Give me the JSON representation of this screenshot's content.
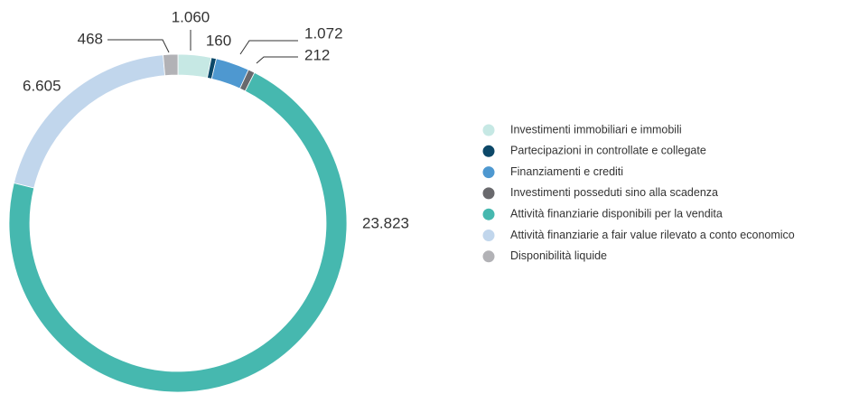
{
  "chart_data": {
    "type": "donut",
    "categories": [
      "Investimenti immobiliari e immobili",
      "Partecipazioni in controllate e collegate",
      "Finanziamenti e crediti",
      "Investimenti posseduti sino alla scadenza",
      "Attività finanziarie disponibili per la vendita",
      "Attività finanziarie a fair value rilevato a conto economico",
      "Disponibilità liquide"
    ],
    "values": [
      1060,
      160,
      1072,
      212,
      23823,
      6605,
      468
    ],
    "value_labels": [
      "1.060",
      "160",
      "1.072",
      "212",
      "23.823",
      "6.605",
      "468"
    ],
    "colors": [
      "#c6e8e4",
      "#0c4868",
      "#4e98d0",
      "#69696d",
      "#46b8af",
      "#c1d6ec",
      "#b2b2b6"
    ]
  }
}
